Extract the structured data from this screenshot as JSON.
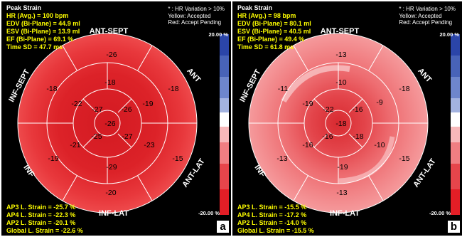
{
  "panels": [
    {
      "letter": "a",
      "title": "Peak Strain",
      "info": [
        "HR (Avg.) = 100 bpm",
        "EDV (Bi-Plane) = 44.9 ml",
        "ESV (Bi-Plane) = 13.9 ml",
        "EF (Bi-Plane) = 69.1 %",
        "Time SD = 47.7 ms"
      ],
      "legend": [
        "* :       HR Variation > 10%",
        "Yellow: Accepted",
        "Red:    Accept Pending"
      ],
      "footer": [
        "AP3 L. Strain = -25.7 %",
        "AP4 L. Strain = -22.3 %",
        "AP2 L. Strain = -20.1 %",
        "Global L. Strain = -22.6 %"
      ],
      "scale_top": "20.00 %",
      "scale_bottom": "-20.00 %",
      "wall_labels": {
        "ant_sept": "ANT-SEPT",
        "ant": "ANT",
        "ant_lat": "ANT-LAT",
        "inf_lat": "INF-LAT",
        "inf": "INF",
        "inf_sept": "INF-SEPT"
      },
      "segments": {
        "basal": [
          "-26",
          "-18",
          "-15",
          "-20",
          "-19",
          "-18"
        ],
        "mid": [
          "-18",
          "-19",
          "-23",
          "-29",
          "-21",
          "-22"
        ],
        "apical": [
          "-26",
          "-27",
          "-25",
          "-27"
        ],
        "apex": "-26"
      }
    },
    {
      "letter": "b",
      "title": "Peak Strain",
      "info": [
        "HR (Avg.) = 98 bpm",
        "EDV (Bi-Plane) = 80.1 ml",
        "ESV (Bi-Plane) = 40.5 ml",
        "EF (Bi-Plane) = 49.4 %",
        "Time SD = 61.8 ms"
      ],
      "legend": [
        "* :       HR Variation > 10%",
        "Yellow: Accepted",
        "Red:    Accept Pending"
      ],
      "footer": [
        "AP3 L. Strain = -15.5 %",
        "AP4 L. Strain = -17.2 %",
        "AP2 L. Strain = -14.0 %",
        "Global L. Strain = -15.5 %"
      ],
      "scale_top": "20.00 %",
      "scale_bottom": "-20.00 %",
      "wall_labels": {
        "ant_sept": "ANT-SEPT",
        "ant": "ANT",
        "ant_lat": "ANT-LAT",
        "inf_lat": "INF-LAT",
        "inf": "INF",
        "inf_sept": "INF-SEPT"
      },
      "segments": {
        "basal": [
          "-13",
          "-18",
          "-15",
          "-13",
          "-13",
          "-11"
        ],
        "mid": [
          "-10",
          "-9",
          "-10",
          "-19",
          "-16",
          "-19"
        ],
        "apical": [
          "-16",
          "-18",
          "-16",
          "-22"
        ],
        "apex": "-18"
      }
    }
  ],
  "colors": {
    "panel_bg": "#000000",
    "info_text": "#ffff00",
    "panel_a_base": "#e8343a",
    "panel_a_dark": "#d11a22",
    "panel_b_base": "#f2787c",
    "panel_b_dark": "#e23a40",
    "ring_line": "#ffffff"
  },
  "icons": [
    "bullseye-plot",
    "color-scale-bar"
  ]
}
